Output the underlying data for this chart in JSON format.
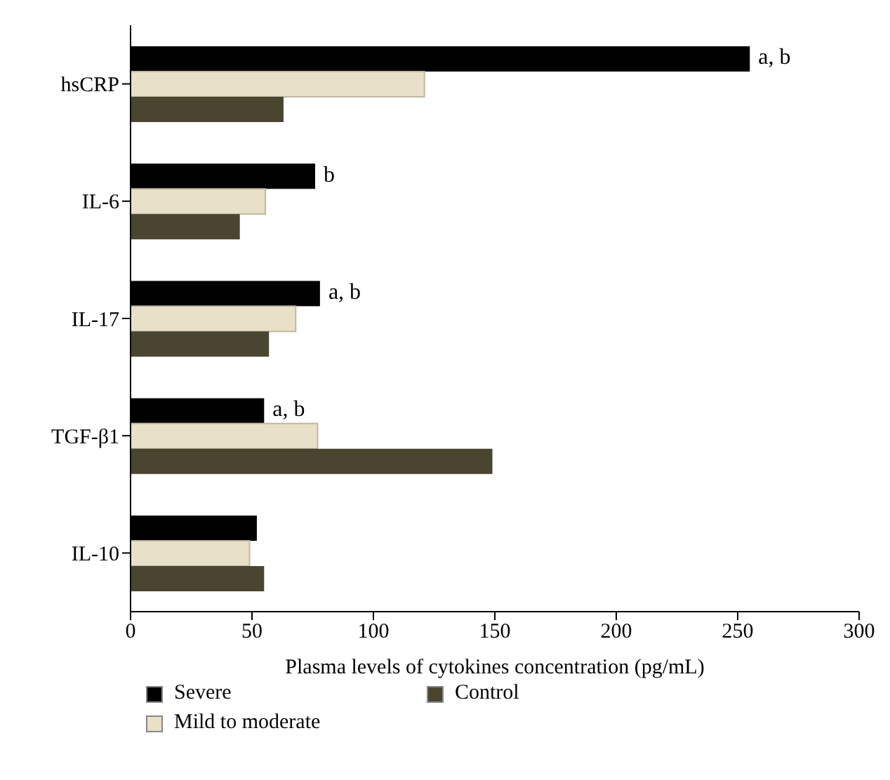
{
  "chart_data": {
    "type": "bar",
    "orientation": "horizontal",
    "xlabel": "Plasma levels of cytokines concentration (pg/mL)",
    "categories": [
      "hsCRP",
      "IL-6",
      "IL-17",
      "TGF-β1",
      "IL-10"
    ],
    "series": [
      {
        "name": "Severe",
        "color": "#000000",
        "values": [
          255,
          76,
          78,
          55,
          52
        ],
        "value_labels": [
          "a, b",
          "b",
          "a, b",
          "a, b",
          null
        ]
      },
      {
        "name": "Mild to moderate",
        "color": "#e8e0c8",
        "values": [
          121,
          55.5,
          68,
          77,
          49
        ]
      },
      {
        "name": "Control",
        "color": "#4a4530",
        "values": [
          63,
          45,
          57,
          149,
          55
        ]
      }
    ],
    "xlim": [
      0,
      300
    ],
    "xticks": [
      0,
      50,
      100,
      150,
      200,
      250,
      300
    ],
    "grid": false,
    "legend": "bottom"
  }
}
